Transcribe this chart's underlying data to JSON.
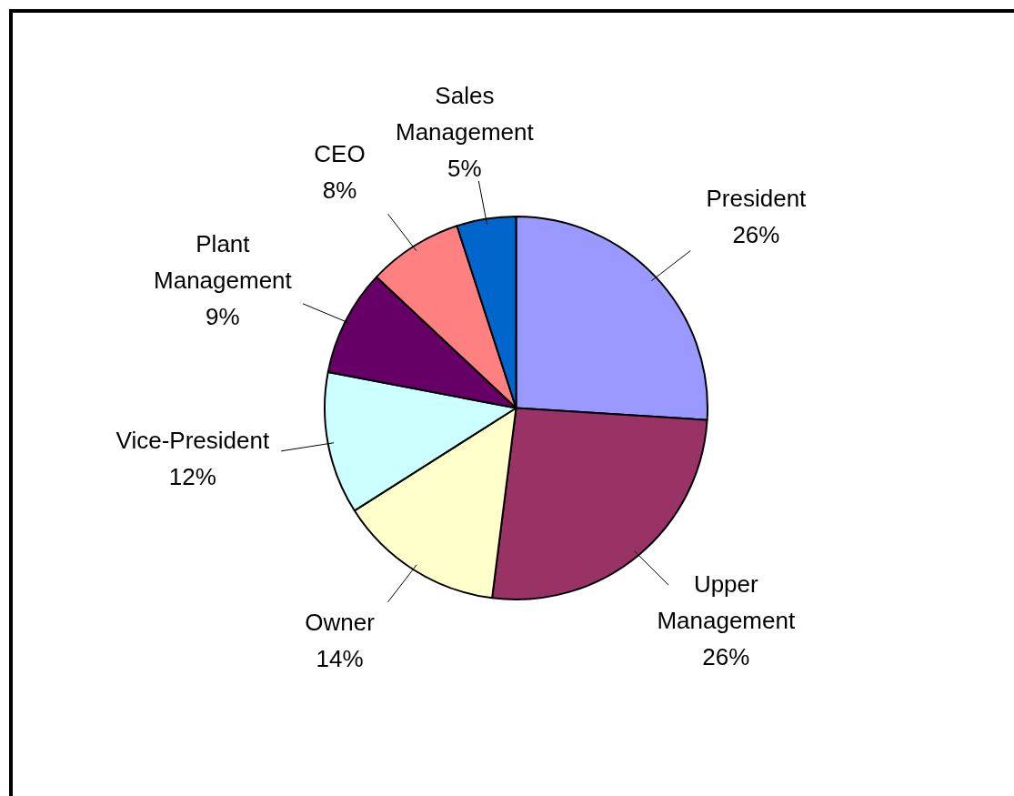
{
  "chart_data": {
    "type": "pie",
    "categories": [
      "President",
      "Upper Management",
      "Owner",
      "Vice-President",
      "Plant Management",
      "CEO",
      "Sales Management"
    ],
    "values": [
      26,
      26,
      14,
      12,
      9,
      8,
      5
    ],
    "colors": [
      "#9999ff",
      "#993366",
      "#ffffcc",
      "#ccffff",
      "#660066",
      "#ff8080",
      "#0066cc"
    ],
    "value_labels": [
      "26%",
      "26%",
      "14%",
      "12%",
      "9%",
      "8%",
      "5%"
    ],
    "legend": false
  }
}
